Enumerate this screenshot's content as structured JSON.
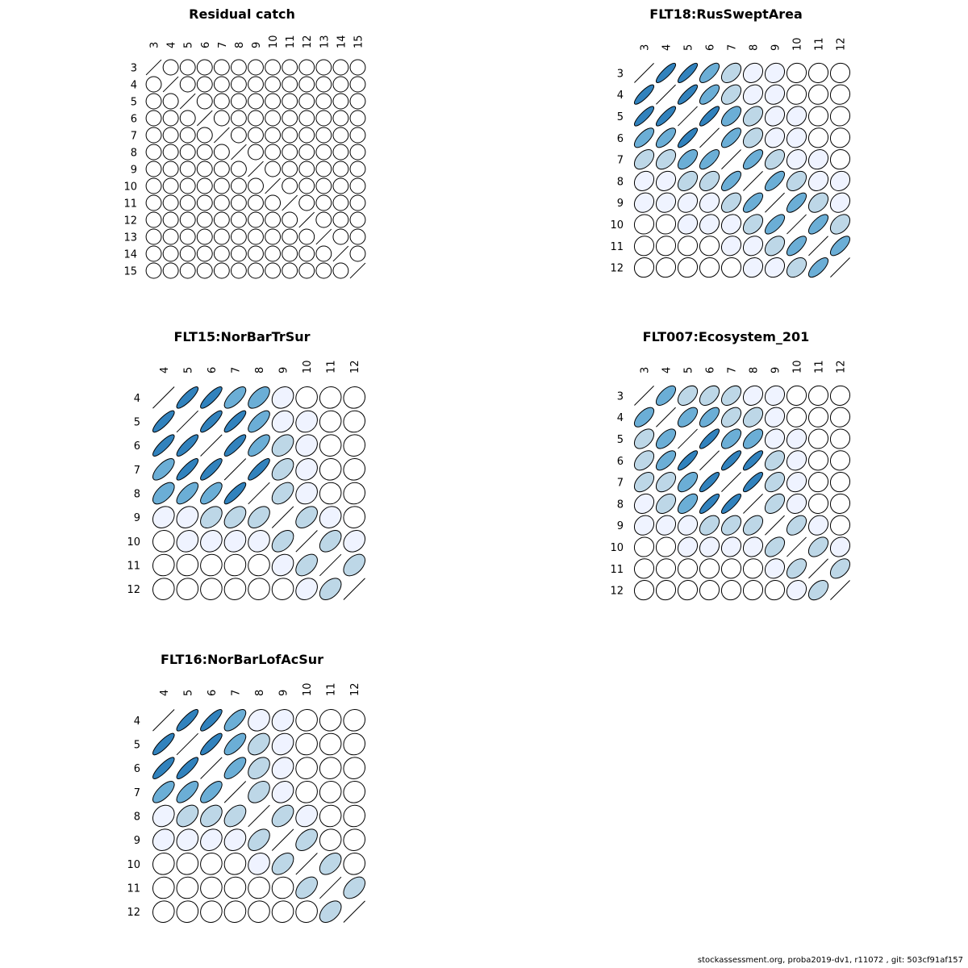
{
  "footer": "stockassessment.org, proba2019-dv1, r11072 , git: 503cf91af157",
  "colors": {
    "outline": "#000000"
  },
  "chart_data": [
    {
      "type": "heatmap",
      "title": "Residual catch",
      "labels": [
        "3",
        "4",
        "5",
        "6",
        "7",
        "8",
        "9",
        "10",
        "11",
        "12",
        "13",
        "14",
        "15"
      ],
      "matrix": [
        [
          1,
          0,
          0,
          0,
          0,
          0,
          0,
          0,
          0,
          0,
          0,
          0,
          0
        ],
        [
          0,
          1,
          0,
          0,
          0,
          0,
          0,
          0,
          0,
          0,
          0,
          0,
          0
        ],
        [
          0,
          0,
          1,
          0,
          0,
          0,
          0,
          0,
          0,
          0,
          0,
          0,
          0
        ],
        [
          0,
          0,
          0,
          1,
          0,
          0,
          0,
          0,
          0,
          0,
          0,
          0,
          0
        ],
        [
          0,
          0,
          0,
          0,
          1,
          0,
          0,
          0,
          0,
          0,
          0,
          0,
          0
        ],
        [
          0,
          0,
          0,
          0,
          0,
          1,
          0,
          0,
          0,
          0,
          0,
          0,
          0
        ],
        [
          0,
          0,
          0,
          0,
          0,
          0,
          1,
          0,
          0,
          0,
          0,
          0,
          0
        ],
        [
          0,
          0,
          0,
          0,
          0,
          0,
          0,
          1,
          0,
          0,
          0,
          0,
          0
        ],
        [
          0,
          0,
          0,
          0,
          0,
          0,
          0,
          0,
          1,
          0,
          0,
          0,
          0
        ],
        [
          0,
          0,
          0,
          0,
          0,
          0,
          0,
          0,
          0,
          1,
          0,
          0,
          0
        ],
        [
          0,
          0,
          0,
          0,
          0,
          0,
          0,
          0,
          0,
          0,
          1,
          0,
          0
        ],
        [
          0,
          0,
          0,
          0,
          0,
          0,
          0,
          0,
          0,
          0,
          0,
          1,
          0
        ],
        [
          0,
          0,
          0,
          0,
          0,
          0,
          0,
          0,
          0,
          0,
          0,
          0,
          1
        ]
      ]
    },
    {
      "type": "heatmap",
      "title": "FLT18:RusSweptArea",
      "labels": [
        "3",
        "4",
        "5",
        "6",
        "7",
        "8",
        "9",
        "10",
        "11",
        "12"
      ],
      "matrix": [
        [
          1,
          0.85,
          0.85,
          0.7,
          0.45,
          0.2,
          0.15,
          0.05,
          0.05,
          0.05
        ],
        [
          0.85,
          1,
          0.85,
          0.7,
          0.45,
          0.2,
          0.15,
          0.05,
          0.05,
          0.05
        ],
        [
          0.85,
          0.85,
          1,
          0.85,
          0.6,
          0.4,
          0.2,
          0.15,
          0.05,
          0.05
        ],
        [
          0.7,
          0.7,
          0.85,
          1,
          0.7,
          0.4,
          0.2,
          0.15,
          0.05,
          0.05
        ],
        [
          0.45,
          0.45,
          0.6,
          0.7,
          1,
          0.7,
          0.45,
          0.15,
          0.15,
          0.05
        ],
        [
          0.2,
          0.2,
          0.4,
          0.4,
          0.7,
          1,
          0.7,
          0.4,
          0.2,
          0.15
        ],
        [
          0.15,
          0.15,
          0.2,
          0.2,
          0.45,
          0.7,
          1,
          0.7,
          0.4,
          0.2
        ],
        [
          0.05,
          0.05,
          0.15,
          0.15,
          0.15,
          0.4,
          0.7,
          1,
          0.7,
          0.4
        ],
        [
          0.05,
          0.05,
          0.05,
          0.05,
          0.15,
          0.2,
          0.4,
          0.7,
          1,
          0.7
        ],
        [
          0.05,
          0.05,
          0.05,
          0.05,
          0.05,
          0.15,
          0.2,
          0.4,
          0.7,
          1
        ]
      ]
    },
    {
      "type": "heatmap",
      "title": "FLT15:NorBarTrSur",
      "labels": [
        "4",
        "5",
        "6",
        "7",
        "8",
        "9",
        "10",
        "11",
        "12"
      ],
      "matrix": [
        [
          1,
          0.85,
          0.85,
          0.7,
          0.6,
          0.2,
          0.05,
          0.05,
          0.05
        ],
        [
          0.85,
          1,
          0.85,
          0.85,
          0.7,
          0.2,
          0.15,
          0.05,
          0.05
        ],
        [
          0.85,
          0.85,
          1,
          0.85,
          0.7,
          0.4,
          0.15,
          0.05,
          0.05
        ],
        [
          0.7,
          0.85,
          0.85,
          1,
          0.85,
          0.45,
          0.15,
          0.05,
          0.05
        ],
        [
          0.6,
          0.7,
          0.7,
          0.85,
          1,
          0.45,
          0.15,
          0.05,
          0.05
        ],
        [
          0.2,
          0.2,
          0.4,
          0.45,
          0.45,
          1,
          0.45,
          0.15,
          0.05
        ],
        [
          0.05,
          0.15,
          0.15,
          0.15,
          0.15,
          0.45,
          1,
          0.45,
          0.2
        ],
        [
          0.05,
          0.05,
          0.05,
          0.05,
          0.05,
          0.2,
          0.45,
          1,
          0.45
        ],
        [
          0.05,
          0.05,
          0.05,
          0.05,
          0.05,
          0.05,
          0.2,
          0.45,
          1
        ]
      ]
    },
    {
      "type": "heatmap",
      "title": "FLT007:Ecosystem_201",
      "labels": [
        "3",
        "4",
        "5",
        "6",
        "7",
        "8",
        "9",
        "10",
        "11",
        "12"
      ],
      "matrix": [
        [
          1,
          0.65,
          0.45,
          0.45,
          0.45,
          0.2,
          0.15,
          0.05,
          0.05,
          0.05
        ],
        [
          0.65,
          1,
          0.6,
          0.65,
          0.45,
          0.4,
          0.15,
          0.05,
          0.05,
          0.05
        ],
        [
          0.45,
          0.6,
          1,
          0.85,
          0.6,
          0.6,
          0.15,
          0.15,
          0.05,
          0.05
        ],
        [
          0.45,
          0.65,
          0.85,
          1,
          0.85,
          0.85,
          0.4,
          0.15,
          0.05,
          0.05
        ],
        [
          0.45,
          0.45,
          0.6,
          0.85,
          1,
          0.85,
          0.4,
          0.15,
          0.05,
          0.05
        ],
        [
          0.2,
          0.4,
          0.6,
          0.85,
          0.85,
          1,
          0.45,
          0.15,
          0.05,
          0.05
        ],
        [
          0.15,
          0.15,
          0.15,
          0.4,
          0.4,
          0.45,
          1,
          0.45,
          0.15,
          0.05
        ],
        [
          0.05,
          0.05,
          0.15,
          0.15,
          0.15,
          0.15,
          0.45,
          1,
          0.45,
          0.15
        ],
        [
          0.05,
          0.05,
          0.05,
          0.05,
          0.05,
          0.05,
          0.15,
          0.45,
          1,
          0.45
        ],
        [
          0.05,
          0.05,
          0.05,
          0.05,
          0.05,
          0.05,
          0.05,
          0.15,
          0.45,
          1
        ]
      ]
    },
    {
      "type": "heatmap",
      "title": "FLT16:NorBarLofAcSur",
      "labels": [
        "4",
        "5",
        "6",
        "7",
        "8",
        "9",
        "10",
        "11",
        "12"
      ],
      "matrix": [
        [
          1,
          0.85,
          0.85,
          0.7,
          0.2,
          0.15,
          0.05,
          0.05,
          0.05
        ],
        [
          0.85,
          1,
          0.85,
          0.7,
          0.4,
          0.2,
          0.05,
          0.05,
          0.05
        ],
        [
          0.85,
          0.85,
          1,
          0.7,
          0.4,
          0.2,
          0.05,
          0.05,
          0.05
        ],
        [
          0.7,
          0.7,
          0.7,
          1,
          0.4,
          0.2,
          0.05,
          0.05,
          0.05
        ],
        [
          0.2,
          0.4,
          0.4,
          0.45,
          1,
          0.45,
          0.2,
          0.05,
          0.05
        ],
        [
          0.15,
          0.15,
          0.2,
          0.2,
          0.45,
          1,
          0.45,
          0.05,
          0.05
        ],
        [
          0.05,
          0.05,
          0.05,
          0.05,
          0.15,
          0.45,
          1,
          0.45,
          0.05
        ],
        [
          0.05,
          0.05,
          0.05,
          0.05,
          0.05,
          0.05,
          0.45,
          1,
          0.45
        ],
        [
          0.05,
          0.05,
          0.05,
          0.05,
          0.05,
          0.05,
          0.05,
          0.45,
          1
        ]
      ]
    }
  ]
}
